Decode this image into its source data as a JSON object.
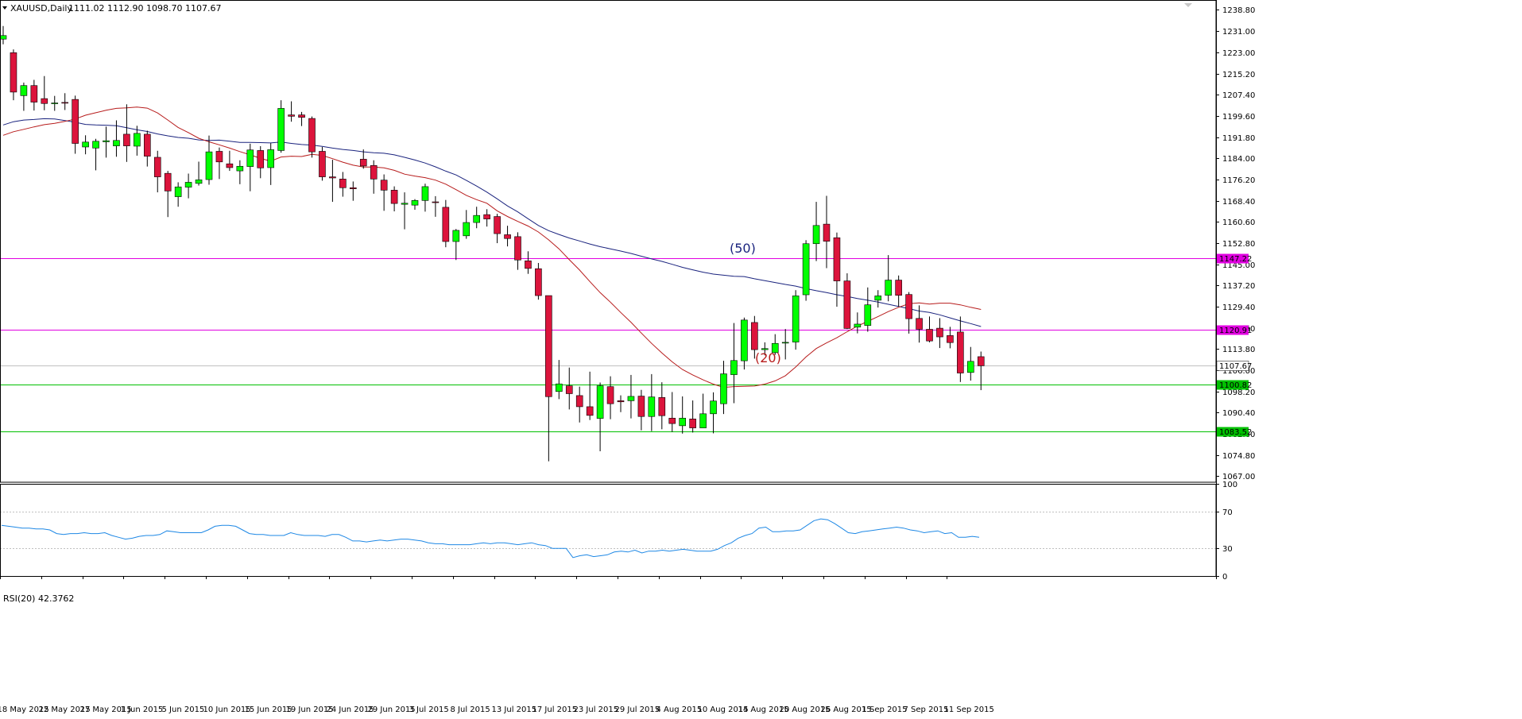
{
  "header": {
    "symbol": "XAUUSD,Daily",
    "ohlc": "1111.02 1112.90 1098.70 1107.67"
  },
  "rsi_header": "RSI(20) 42.3762",
  "ma_labels": {
    "ma50": "(50)",
    "ma20": "(20)"
  },
  "colors": {
    "bull": "#00ff00",
    "bear": "#dc143c",
    "wick": "#000000",
    "ma50": "#1a237e",
    "ma20": "#b71c1c",
    "rsi": "#1e88e5",
    "magenta_level": "#e100e1",
    "green_level": "#00c000",
    "current_price": "#c0c0c0"
  },
  "chart_data": [
    {
      "type": "candlestick",
      "title": "XAUUSD,Daily",
      "ylim": [
        1064.8,
        1242.0
      ],
      "y_ticks": [
        "1238.80",
        "1231.00",
        "1223.00",
        "1215.20",
        "1207.40",
        "1199.60",
        "1191.80",
        "1184.00",
        "1176.20",
        "1168.40",
        "1160.60",
        "1152.80",
        "1145.00",
        "1137.20",
        "1129.40",
        "1121.60",
        "1113.80",
        "1106.00",
        "1098.20",
        "1090.40",
        "1082.60",
        "1074.80",
        "1067.00"
      ],
      "x_ticks": [
        "18 May 2015",
        "22 May 2015",
        "27 May 2015",
        "1 Jun 2015",
        "5 Jun 2015",
        "10 Jun 2015",
        "15 Jun 2015",
        "19 Jun 2015",
        "24 Jun 2015",
        "29 Jun 2015",
        "3 Jul 2015",
        "8 Jul 2015",
        "13 Jul 2015",
        "17 Jul 2015",
        "23 Jul 2015",
        "29 Jul 2015",
        "4 Aug 2015",
        "10 Aug 2015",
        "14 Aug 2015",
        "20 Aug 2015",
        "26 Aug 2015",
        "1 Sep 2015",
        "7 Sep 2015",
        "11 Sep 2015"
      ],
      "x_tick_index": [
        0,
        4,
        8,
        12,
        16,
        20,
        24,
        28,
        32,
        36,
        40,
        44,
        48,
        52,
        56,
        60,
        64,
        68,
        72,
        76,
        80,
        84,
        88,
        92
      ],
      "candles": [
        [
          1227.9,
          1232.7,
          1226.0,
          1229.2
        ],
        [
          1222.9,
          1224.1,
          1205.4,
          1208.4
        ],
        [
          1207.1,
          1211.9,
          1201.5,
          1210.8
        ],
        [
          1210.8,
          1212.9,
          1201.6,
          1204.7
        ],
        [
          1206.0,
          1214.3,
          1201.7,
          1204.2
        ],
        [
          1204.2,
          1207.0,
          1201.5,
          1204.4
        ],
        [
          1204.6,
          1208.0,
          1201.8,
          1204.4
        ],
        [
          1205.7,
          1207.1,
          1185.7,
          1189.5
        ],
        [
          1188.2,
          1192.5,
          1185.5,
          1190.0
        ],
        [
          1187.8,
          1191.2,
          1179.6,
          1190.3
        ],
        [
          1190.1,
          1195.7,
          1184.3,
          1190.5
        ],
        [
          1188.6,
          1198.0,
          1184.6,
          1190.6
        ],
        [
          1192.9,
          1203.9,
          1182.7,
          1188.6
        ],
        [
          1188.5,
          1196.0,
          1185.0,
          1193.2
        ],
        [
          1192.9,
          1194.2,
          1181.0,
          1184.8
        ],
        [
          1184.4,
          1186.8,
          1171.5,
          1177.2
        ],
        [
          1178.5,
          1179.4,
          1162.4,
          1172.0
        ],
        [
          1169.9,
          1175.2,
          1166.2,
          1173.5
        ],
        [
          1173.4,
          1178.4,
          1169.3,
          1175.2
        ],
        [
          1174.8,
          1182.8,
          1174.0,
          1176.1
        ],
        [
          1176.2,
          1192.4,
          1174.3,
          1186.4
        ],
        [
          1186.6,
          1188.0,
          1176.4,
          1182.7
        ],
        [
          1182.0,
          1186.8,
          1179.4,
          1180.6
        ],
        [
          1179.4,
          1183.3,
          1174.5,
          1181.1
        ],
        [
          1181.0,
          1189.4,
          1171.9,
          1187.1
        ],
        [
          1186.9,
          1188.5,
          1176.7,
          1180.5
        ],
        [
          1180.6,
          1189.6,
          1174.2,
          1187.2
        ],
        [
          1186.9,
          1205.4,
          1186.1,
          1202.4
        ],
        [
          1200.0,
          1205.0,
          1197.5,
          1199.5
        ],
        [
          1200.0,
          1201.1,
          1195.9,
          1199.1
        ],
        [
          1198.7,
          1199.4,
          1184.3,
          1186.4
        ],
        [
          1186.6,
          1188.2,
          1175.8,
          1177.2
        ],
        [
          1177.2,
          1183.5,
          1168.0,
          1176.8
        ],
        [
          1176.4,
          1179.0,
          1169.9,
          1173.2
        ],
        [
          1173.2,
          1175.5,
          1168.4,
          1172.8
        ],
        [
          1183.7,
          1187.3,
          1180.2,
          1181.2
        ],
        [
          1181.4,
          1183.3,
          1171.0,
          1176.4
        ],
        [
          1176.0,
          1178.1,
          1164.7,
          1172.3
        ],
        [
          1172.3,
          1173.7,
          1164.5,
          1167.4
        ],
        [
          1167.1,
          1171.5,
          1157.9,
          1167.5
        ],
        [
          1166.8,
          1169.0,
          1165.1,
          1168.5
        ],
        [
          1168.5,
          1174.7,
          1164.4,
          1173.6
        ],
        [
          1168.0,
          1170.1,
          1162.5,
          1167.8
        ],
        [
          1166.0,
          1168.7,
          1151.3,
          1153.4
        ],
        [
          1153.4,
          1158.0,
          1146.6,
          1157.5
        ],
        [
          1155.5,
          1165.0,
          1154.4,
          1160.4
        ],
        [
          1160.4,
          1166.2,
          1158.3,
          1163.0
        ],
        [
          1163.3,
          1165.3,
          1158.9,
          1161.7
        ],
        [
          1162.6,
          1163.6,
          1152.8,
          1156.3
        ],
        [
          1155.9,
          1159.2,
          1151.6,
          1154.5
        ],
        [
          1155.2,
          1156.8,
          1143.0,
          1146.6
        ],
        [
          1146.3,
          1149.8,
          1141.5,
          1143.5
        ],
        [
          1143.4,
          1145.5,
          1132.0,
          1133.5
        ],
        [
          1133.5,
          1133.5,
          1072.5,
          1096.3
        ],
        [
          1098.2,
          1109.8,
          1095.4,
          1101.0
        ],
        [
          1100.3,
          1107.0,
          1091.6,
          1097.4
        ],
        [
          1096.7,
          1100.0,
          1086.8,
          1092.6
        ],
        [
          1092.6,
          1105.5,
          1087.7,
          1089.4
        ],
        [
          1088.3,
          1101.5,
          1076.2,
          1100.3
        ],
        [
          1100.0,
          1103.8,
          1088.0,
          1093.7
        ],
        [
          1094.8,
          1096.8,
          1090.6,
          1094.4
        ],
        [
          1094.8,
          1104.3,
          1088.3,
          1096.4
        ],
        [
          1096.5,
          1098.8,
          1083.9,
          1089.0
        ],
        [
          1089.0,
          1104.6,
          1083.6,
          1096.2
        ],
        [
          1096.0,
          1101.6,
          1084.3,
          1089.3
        ],
        [
          1088.4,
          1098.0,
          1083.3,
          1086.4
        ],
        [
          1085.6,
          1096.4,
          1082.7,
          1088.4
        ],
        [
          1088.1,
          1094.9,
          1083.1,
          1084.8
        ],
        [
          1084.8,
          1097.4,
          1085.3,
          1090.0
        ],
        [
          1090.0,
          1097.9,
          1082.8,
          1094.7
        ],
        [
          1093.7,
          1109.5,
          1089.9,
          1104.7
        ],
        [
          1104.4,
          1123.4,
          1093.9,
          1109.6
        ],
        [
          1109.5,
          1125.4,
          1106.3,
          1124.5
        ],
        [
          1123.6,
          1126.0,
          1110.3,
          1113.6
        ],
        [
          1113.6,
          1116.3,
          1111.5,
          1114.0
        ],
        [
          1112.5,
          1119.3,
          1111.7,
          1115.9
        ],
        [
          1116.1,
          1121.2,
          1110.0,
          1116.3
        ],
        [
          1116.4,
          1135.5,
          1113.6,
          1133.4
        ],
        [
          1133.8,
          1153.9,
          1131.6,
          1152.6
        ],
        [
          1152.6,
          1168.0,
          1146.2,
          1159.3
        ],
        [
          1159.8,
          1170.2,
          1143.6,
          1153.5
        ],
        [
          1154.8,
          1156.7,
          1129.4,
          1138.9
        ],
        [
          1138.9,
          1141.7,
          1121.2,
          1121.4
        ],
        [
          1121.9,
          1127.3,
          1119.6,
          1123.0
        ],
        [
          1122.5,
          1136.5,
          1120.2,
          1130.1
        ],
        [
          1131.8,
          1135.5,
          1129.1,
          1133.4
        ],
        [
          1133.6,
          1148.4,
          1131.4,
          1139.2
        ],
        [
          1139.2,
          1140.9,
          1129.5,
          1133.6
        ],
        [
          1133.9,
          1134.8,
          1119.5,
          1125.0
        ],
        [
          1125.1,
          1129.9,
          1116.2,
          1121.1
        ],
        [
          1121.1,
          1125.8,
          1116.3,
          1116.8
        ],
        [
          1121.5,
          1125.2,
          1114.2,
          1118.3
        ],
        [
          1118.8,
          1122.0,
          1114.1,
          1116.2
        ],
        [
          1120.1,
          1125.8,
          1101.7,
          1105.0
        ],
        [
          1105.2,
          1114.6,
          1102.2,
          1109.3
        ],
        [
          1111.02,
          1112.9,
          1098.7,
          1107.67
        ]
      ],
      "ma50": [
        1196.3,
        1197.5,
        1198.1,
        1198.3,
        1198.6,
        1198.5,
        1197.9,
        1197.3,
        1196.5,
        1196.3,
        1196.2,
        1196.0,
        1195.3,
        1194.5,
        1193.9,
        1193.0,
        1192.3,
        1191.7,
        1191.4,
        1190.8,
        1190.6,
        1190.7,
        1190.3,
        1189.9,
        1189.9,
        1189.8,
        1189.7,
        1190.0,
        1189.5,
        1189.1,
        1188.9,
        1188.4,
        1187.8,
        1187.3,
        1186.9,
        1186.4,
        1186.1,
        1185.9,
        1185.3,
        1184.4,
        1183.4,
        1182.3,
        1180.9,
        1179.3,
        1177.9,
        1175.9,
        1173.8,
        1171.6,
        1169.1,
        1166.5,
        1164.3,
        1161.8,
        1159.3,
        1157.4,
        1156.0,
        1154.7,
        1153.6,
        1152.5,
        1151.5,
        1150.7,
        1149.9,
        1149.0,
        1148.0,
        1147.0,
        1146.1,
        1145.0,
        1143.9,
        1143.0,
        1142.1,
        1141.4,
        1141.0,
        1140.6,
        1140.5,
        1139.7,
        1139.0,
        1138.3,
        1137.6,
        1137.0,
        1136.1,
        1135.3,
        1134.6,
        1133.8,
        1133.2,
        1132.4,
        1131.8,
        1131.1,
        1130.3,
        1129.5,
        1128.7,
        1127.8,
        1127.3,
        1126.4,
        1125.3,
        1124.2,
        1123.2,
        1122.1
      ],
      "ma20": [
        1192.5,
        1193.8,
        1194.7,
        1195.6,
        1196.4,
        1196.9,
        1197.6,
        1198.5,
        1199.9,
        1200.8,
        1201.7,
        1202.4,
        1202.6,
        1202.9,
        1202.5,
        1200.7,
        1198.1,
        1195.4,
        1193.5,
        1191.4,
        1190.1,
        1189.0,
        1187.8,
        1186.5,
        1185.3,
        1184.0,
        1183.0,
        1184.5,
        1184.8,
        1184.7,
        1185.5,
        1185.1,
        1183.9,
        1182.6,
        1181.5,
        1180.8,
        1180.8,
        1180.5,
        1179.6,
        1178.2,
        1177.5,
        1176.9,
        1176.0,
        1174.5,
        1172.5,
        1170.4,
        1168.8,
        1167.5,
        1164.7,
        1162.6,
        1160.8,
        1159.1,
        1156.9,
        1154.0,
        1150.7,
        1146.7,
        1142.9,
        1138.7,
        1134.6,
        1131.1,
        1127.3,
        1123.7,
        1119.7,
        1115.9,
        1112.4,
        1109.1,
        1106.3,
        1104.3,
        1102.5,
        1100.9,
        1099.7,
        1100.0,
        1100.1,
        1100.2,
        1100.9,
        1102.1,
        1104.0,
        1107.2,
        1110.9,
        1114.0,
        1116.1,
        1118.0,
        1120.2,
        1122.3,
        1124.0,
        1125.8,
        1127.6,
        1129.2,
        1130.5,
        1130.8,
        1130.4,
        1130.7,
        1130.7,
        1130.1,
        1129.2,
        1128.4
      ]
    },
    {
      "type": "line",
      "title": "RSI(20) 42.3762",
      "ylim": [
        0,
        100
      ],
      "y_ticks": [
        "100",
        "70",
        "30",
        "0"
      ],
      "series": [
        {
          "values": [
            55,
            54,
            53,
            52,
            52,
            51,
            51,
            50,
            46,
            45,
            46,
            46,
            47,
            46,
            46,
            47,
            44,
            42,
            40,
            41,
            43,
            44,
            44,
            45,
            49,
            48,
            47,
            47,
            47,
            47,
            50,
            54,
            55,
            55,
            54,
            50,
            46,
            45,
            45,
            44,
            44,
            44,
            47,
            45,
            44,
            44,
            44,
            43,
            45,
            45,
            42,
            38,
            38,
            37,
            38,
            39,
            38,
            39,
            40,
            40,
            39,
            38,
            36,
            35,
            35,
            34,
            34,
            34,
            34,
            35,
            36,
            35,
            36,
            36,
            35,
            34,
            35,
            36,
            34,
            33,
            30,
            30,
            30,
            20,
            22,
            23,
            21,
            22,
            23,
            26,
            27,
            26,
            28,
            25,
            27,
            27,
            28,
            27,
            28,
            29,
            28,
            27,
            27,
            27,
            29,
            33,
            36,
            41,
            44,
            46,
            52,
            53,
            48,
            48,
            49,
            49,
            50,
            55,
            60,
            62,
            61,
            57,
            52,
            47,
            46,
            48,
            49,
            50,
            51,
            52,
            53,
            52,
            50,
            49,
            47,
            48,
            49,
            46,
            47,
            42,
            42,
            43,
            42
          ]
        }
      ]
    }
  ],
  "levels": [
    {
      "price": 1147.22,
      "tag": "1147.22",
      "type": "resistance"
    },
    {
      "price": 1120.91,
      "tag": "1120.91",
      "type": "resistance"
    },
    {
      "price": 1107.67,
      "tag": "1107.67",
      "type": "current"
    },
    {
      "price": 1100.82,
      "tag": "1100.82",
      "type": "support"
    },
    {
      "price": 1083.52,
      "tag": "1083.52",
      "type": "support"
    }
  ]
}
